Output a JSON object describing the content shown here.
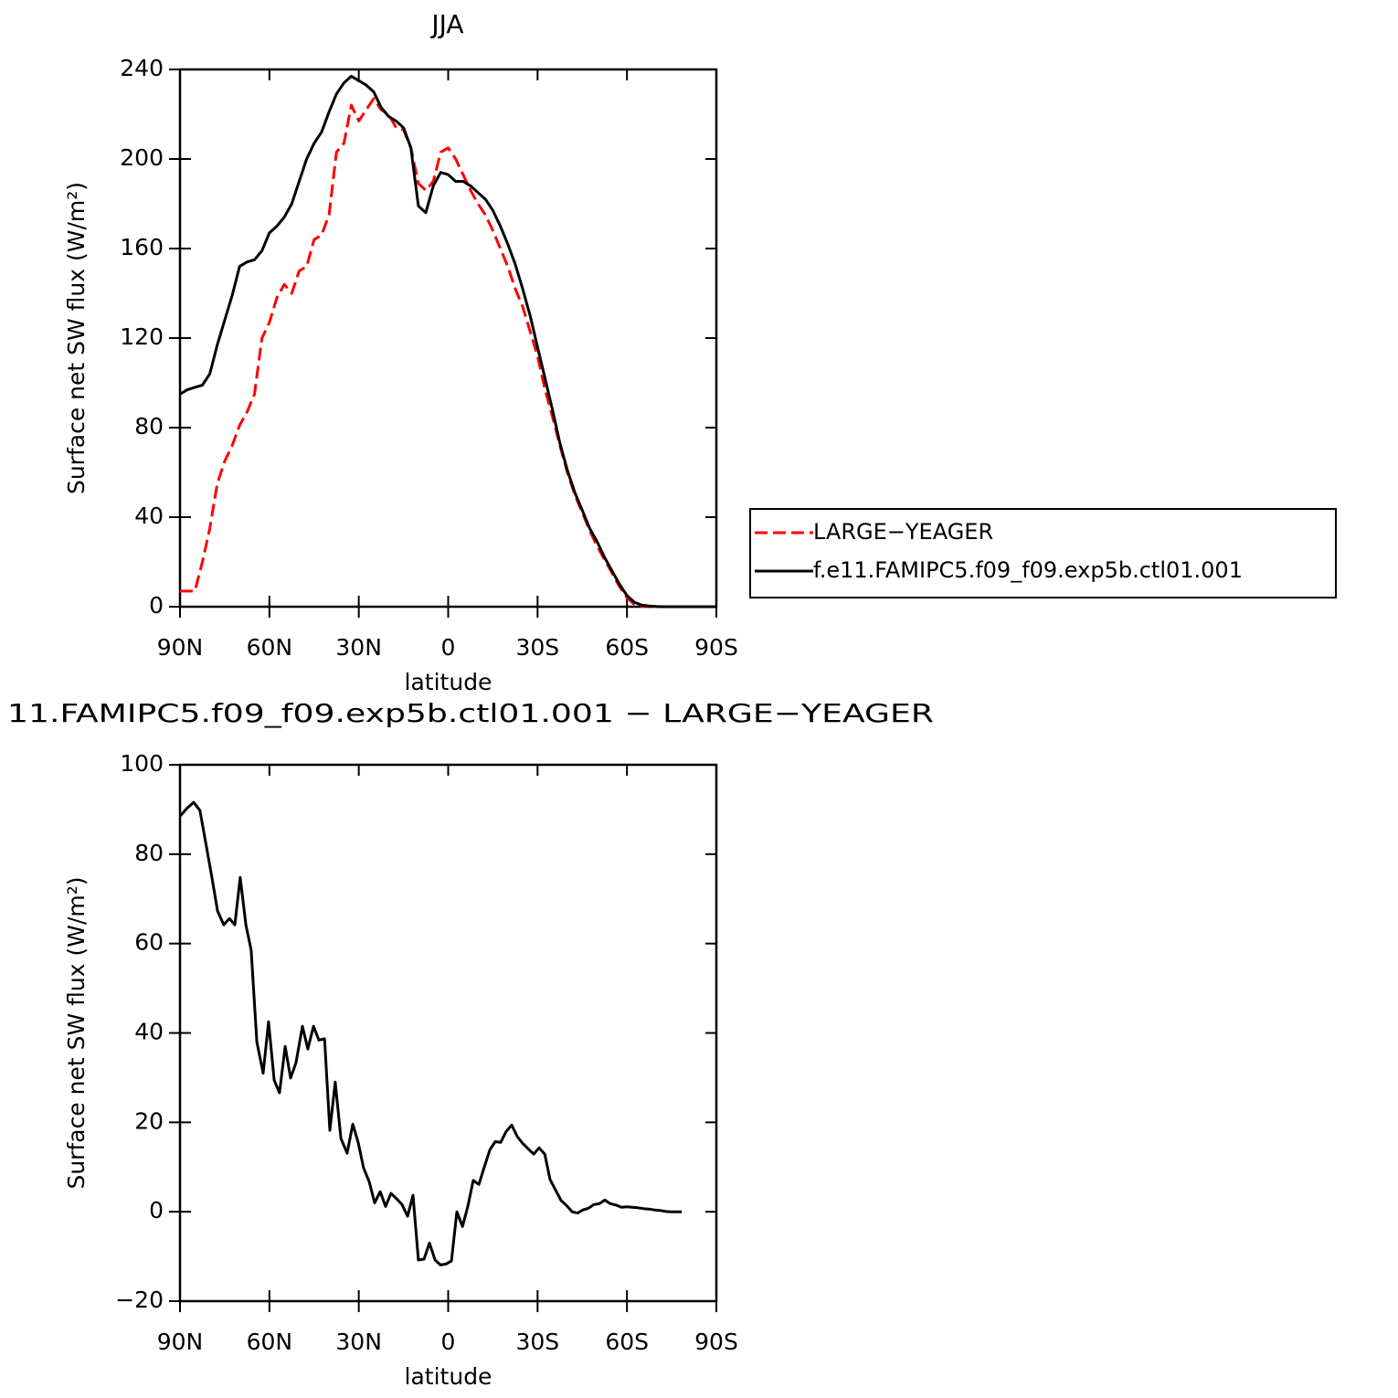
{
  "chart_data": [
    {
      "type": "line",
      "title": "JJA",
      "x_label": "latitude",
      "y_label": "Surface net SW flux (W/m²)",
      "x": [
        90,
        87.5,
        85,
        82.5,
        80,
        77.5,
        75,
        72.5,
        70,
        67.5,
        65,
        62.5,
        60,
        57.5,
        55,
        52.5,
        50,
        47.5,
        45,
        42.5,
        40,
        37.5,
        35,
        32.5,
        30,
        27.5,
        25,
        22.5,
        20,
        17.5,
        15,
        12.5,
        10,
        7.5,
        5,
        2.5,
        0,
        -2.5,
        -5,
        -7.5,
        -10,
        -12.5,
        -15,
        -17.5,
        -20,
        -22.5,
        -25,
        -27.5,
        -30,
        -32.5,
        -35,
        -37.5,
        -40,
        -42.5,
        -45,
        -47.5,
        -50,
        -52.5,
        -55,
        -57.5,
        -60,
        -62.5,
        -65,
        -67.5,
        -70,
        -72.5,
        -75,
        -77.5,
        -80,
        -82.5,
        -85,
        -87.5,
        -90
      ],
      "series": [
        {
          "name": "LARGE−YEAGER",
          "color": "#ff0000",
          "dash": "dashed",
          "values": [
            7,
            7,
            7,
            20,
            35,
            55,
            65,
            72,
            81,
            87,
            95,
            120,
            127,
            138,
            144,
            140,
            150,
            152,
            164,
            166,
            175,
            203,
            207,
            224,
            217,
            222,
            227,
            222,
            220,
            214,
            213,
            205,
            189,
            186,
            190,
            203,
            205,
            200,
            193,
            186,
            180,
            175,
            168,
            160,
            152,
            142,
            134,
            123,
            112,
            97,
            85,
            72,
            60,
            50,
            42,
            34,
            27,
            21,
            15,
            9,
            4,
            1,
            0.3,
            0,
            0,
            0,
            0,
            0,
            0,
            0,
            0,
            0,
            0
          ]
        },
        {
          "name": "f.e11.FAMIPC5.f09_f09.exp5b.ctl01.001",
          "color": "#000000",
          "dash": "solid",
          "values": [
            95,
            97,
            98,
            99,
            104,
            117,
            128,
            139,
            152,
            154,
            155,
            159,
            167,
            170,
            174,
            180,
            190,
            200,
            207,
            212,
            221,
            229,
            234,
            237,
            235,
            233,
            230,
            223,
            219,
            217,
            214,
            205,
            179,
            176,
            188,
            194,
            193,
            190,
            190,
            188,
            185,
            182,
            177,
            170,
            162,
            153,
            142,
            130,
            116,
            102,
            88,
            73,
            61,
            51,
            43,
            35,
            29,
            22,
            16,
            10,
            5,
            2,
            0.7,
            0.3,
            0.1,
            0,
            0,
            0,
            0,
            0,
            0,
            0,
            0
          ]
        }
      ],
      "xlim": [
        90,
        -90
      ],
      "xticks": [
        {
          "value": 90,
          "label": "90N"
        },
        {
          "value": 60,
          "label": "60N"
        },
        {
          "value": 30,
          "label": "30N"
        },
        0,
        {
          "value": -30,
          "label": "30S"
        },
        {
          "value": -60,
          "label": "60S"
        },
        {
          "value": -90,
          "label": "90S"
        }
      ],
      "ylim": [
        0,
        240
      ],
      "yticks": [
        0,
        40,
        80,
        120,
        160,
        200,
        240
      ],
      "legend": "right",
      "grid": false
    },
    {
      "type": "line",
      "title": "11.FAMIPC5.f09_f09.exp5b.ctl01.001 − LARGE−YEAGER",
      "x_label": "latitude",
      "y_label": "Surface net SW flux (W/m²)",
      "x": [
        90,
        87.5,
        85.4,
        83.3,
        81.1,
        79.3,
        77.4,
        75.3,
        73.4,
        71.6,
        69.8,
        67.9,
        66.1,
        64.2,
        62.1,
        60.3,
        58.4,
        56.6,
        54.7,
        52.9,
        51.1,
        48.9,
        47.1,
        45.2,
        43.4,
        41.5,
        39.7,
        37.9,
        36,
        33.9,
        32,
        30.2,
        28.4,
        26.5,
        24.7,
        22.8,
        21,
        19.2,
        17.3,
        15.5,
        13.6,
        11.8,
        10,
        8.1,
        6.3,
        4.4,
        2.6,
        0.8,
        -1.1,
        -2.9,
        -4.8,
        -6.6,
        -8.4,
        -10.3,
        -12.1,
        -14,
        -15.8,
        -17.6,
        -19.5,
        -21.3,
        -23.2,
        -25,
        -26.8,
        -28.7,
        -30.5,
        -32.4,
        -34.2,
        -36,
        -37.9,
        -39.7,
        -41.6,
        -43.4,
        -45.2,
        -47.1,
        -48.9,
        -50.7,
        -52.6,
        -54.4,
        -56.3,
        -58.1,
        -59.9,
        -61.8,
        -63.6,
        -65.5,
        -67.3,
        -69.2,
        -71,
        -72.8,
        -74.7,
        -76.5,
        -78.4
      ],
      "values": [
        88.5,
        90.4,
        91.6,
        89.8,
        81.6,
        74.8,
        67.3,
        64.2,
        65.6,
        64.2,
        74.8,
        64.2,
        58.5,
        38,
        31,
        42.5,
        29.4,
        26.6,
        37,
        29.9,
        33.3,
        41.5,
        36.4,
        41.5,
        38.4,
        38.7,
        18.2,
        29,
        16.4,
        13.1,
        19.6,
        15.5,
        9.8,
        6.7,
        2,
        4.5,
        1.2,
        4.1,
        2.9,
        1.6,
        -1,
        3.7,
        -10.8,
        -10.6,
        -7,
        -10.8,
        -11.9,
        -11.7,
        -11,
        0,
        -3.3,
        1.2,
        7,
        6.1,
        10,
        13.9,
        15.7,
        15.5,
        18,
        19.4,
        16.8,
        15.3,
        14.1,
        12.9,
        14.3,
        12.9,
        7.2,
        4.9,
        2.5,
        1.4,
        0,
        -0.3,
        0.4,
        0.8,
        1.6,
        1.8,
        2.6,
        1.8,
        1.5,
        1,
        1.1,
        1,
        0.9,
        0.7,
        0.6,
        0.4,
        0.3,
        0.1,
        0,
        0,
        0
      ],
      "color": "#000000",
      "xlim": [
        90,
        -90
      ],
      "xticks": [
        {
          "value": 90,
          "label": "90N"
        },
        {
          "value": 60,
          "label": "60N"
        },
        {
          "value": 30,
          "label": "30N"
        },
        0,
        {
          "value": -30,
          "label": "30S"
        },
        {
          "value": -60,
          "label": "60S"
        },
        {
          "value": -90,
          "label": "90S"
        }
      ],
      "ylim": [
        -20,
        100
      ],
      "yticks": [
        {
          "value": -20,
          "label": "−20"
        },
        0,
        20,
        40,
        60,
        80,
        100
      ],
      "grid": false
    }
  ]
}
